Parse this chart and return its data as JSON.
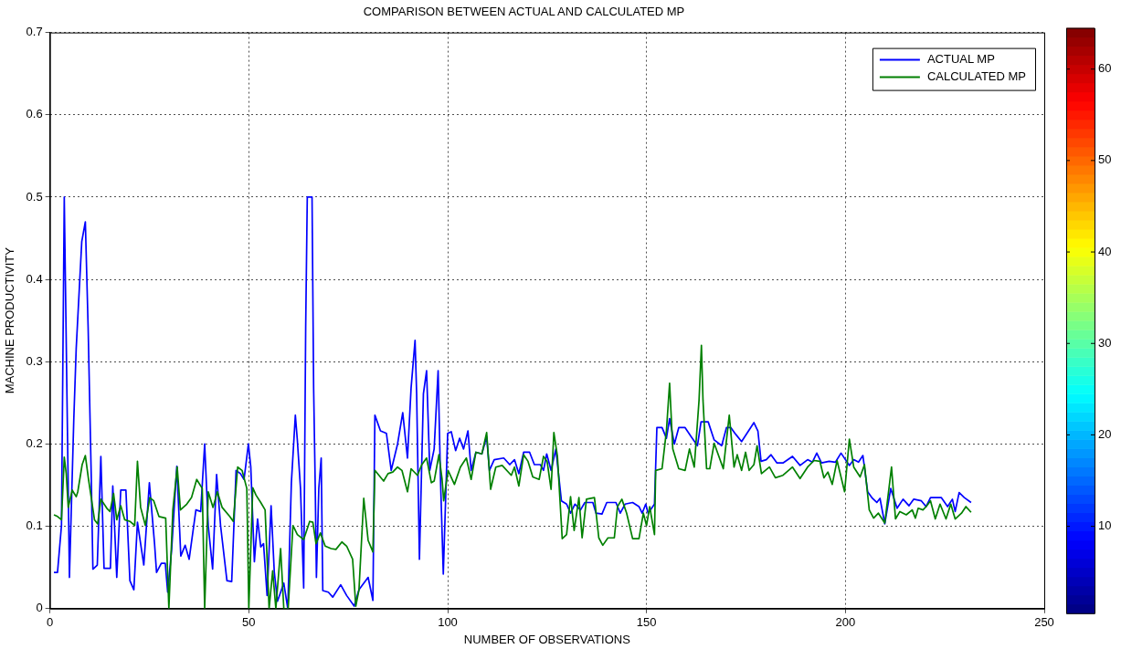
{
  "chart_data": {
    "type": "line",
    "title": "COMPARISON BETWEEN ACTUAL AND CALCULATED MP",
    "xlabel": "NUMBER OF OBSERVATIONS",
    "ylabel": "MACHINE PRODUCTIVITY",
    "xlim": [
      0,
      250
    ],
    "xticks": [
      0,
      50,
      100,
      150,
      200,
      250
    ],
    "ylim": [
      0,
      0.7
    ],
    "yticks": [
      0,
      0.1,
      0.2,
      0.3,
      0.4,
      0.5,
      0.6,
      0.7
    ],
    "grid": true,
    "legend": "top right",
    "marker": "none",
    "line_style": "solid",
    "clim": [
      0.5,
      64.5
    ],
    "cticks": [
      10,
      20,
      30,
      40,
      50,
      60
    ],
    "series": [
      {
        "name": "ACTUAL MP",
        "color": "#0000ff",
        "x": [
          1,
          1.9,
          2.9,
          3.6,
          4.9,
          6,
          6.6,
          8,
          8.9,
          9.6,
          10.4,
          10.8,
          11.9,
          12.8,
          13.6,
          15.2,
          15.8,
          16.8,
          17.8,
          19.1,
          20.1,
          21.1,
          22,
          23.6,
          25,
          26.3,
          26.8,
          28,
          29,
          29.6,
          30.6,
          31.9,
          32.9,
          34,
          35,
          36.7,
          37.9,
          38.9,
          39.8,
          40.9,
          41.9,
          42.9,
          44.5,
          45.7,
          46.8,
          47.9,
          48.8,
          49.9,
          50.5,
          51.4,
          52.2,
          53,
          53.7,
          54.6,
          55.6,
          56.4,
          57.2,
          58.8,
          59.8,
          60.7,
          61.7,
          62.2,
          63,
          63.8,
          64.3,
          64.7,
          65.9,
          66.3,
          66.7,
          67,
          67.6,
          68.2,
          68.6,
          70,
          71.1,
          73.1,
          74.6,
          76.5,
          77.7,
          80,
          81.2,
          81.7,
          83.1,
          84.6,
          85.8,
          87.4,
          88.7,
          89.9,
          90.8,
          91.8,
          92.2,
          92.9,
          93.9,
          94.7,
          95.5,
          96.6,
          97.6,
          98.2,
          98.9,
          100,
          100.9,
          102,
          103,
          104,
          105.1,
          105.9,
          107.1,
          108.6,
          109.8,
          110.5,
          111.7,
          114.1,
          115.6,
          116.8,
          117.9,
          119.1,
          120.6,
          121.8,
          123.3,
          124.1,
          124.9,
          126,
          127.2,
          128.6,
          129.9,
          130.9,
          132,
          133.4,
          134.5,
          136.5,
          137.3,
          138.8,
          140,
          142.3,
          143.4,
          144.6,
          146.5,
          148.1,
          148.9,
          149.8,
          150.4,
          152,
          152.6,
          153.9,
          155,
          155.8,
          157,
          158.1,
          159.7,
          161.2,
          162.8,
          163.7,
          165.5,
          167,
          168.9,
          170.1,
          171.2,
          172.4,
          173.9,
          177,
          178,
          178.8,
          180.1,
          181.3,
          182.8,
          184.3,
          186.7,
          188.6,
          190.5,
          191.7,
          192.8,
          194,
          195.9,
          197.5,
          198.9,
          201,
          202.1,
          203.3,
          204.4,
          205.6,
          206.8,
          207.9,
          208.7,
          209.9,
          211.4,
          213,
          214.5,
          216,
          217.2,
          219.1,
          220.3,
          221.4,
          224.1,
          225.7,
          226.9,
          227.6,
          228.6,
          229.9,
          231.6
        ],
        "values": [
          0.044,
          0.044,
          0.101,
          0.5,
          0.038,
          0.231,
          0.316,
          0.446,
          0.47,
          0.342,
          0.157,
          0.048,
          0.053,
          0.185,
          0.049,
          0.049,
          0.149,
          0.038,
          0.144,
          0.144,
          0.034,
          0.023,
          0.105,
          0.053,
          0.153,
          0.079,
          0.044,
          0.055,
          0.055,
          0.02,
          0.072,
          0.173,
          0.064,
          0.077,
          0.06,
          0.12,
          0.118,
          0.2,
          0.101,
          0.048,
          0.163,
          0.101,
          0.034,
          0.033,
          0.168,
          0.164,
          0.157,
          0.2,
          0.172,
          0.057,
          0.109,
          0.075,
          0.079,
          0.016,
          0.125,
          0.045,
          0.009,
          0.031,
          0,
          0.153,
          0.235,
          0.205,
          0.146,
          0.025,
          0.342,
          0.5,
          0.5,
          0.268,
          0.149,
          0.038,
          0.146,
          0.183,
          0.022,
          0.02,
          0.014,
          0.029,
          0.016,
          0.003,
          0.023,
          0.038,
          0.01,
          0.235,
          0.216,
          0.213,
          0.168,
          0.2,
          0.238,
          0.183,
          0.268,
          0.326,
          0.261,
          0.06,
          0.261,
          0.289,
          0.168,
          0.194,
          0.289,
          0.157,
          0.042,
          0.213,
          0.215,
          0.192,
          0.207,
          0.194,
          0.216,
          0.168,
          0.19,
          0.188,
          0.209,
          0.168,
          0.181,
          0.183,
          0.175,
          0.181,
          0.164,
          0.19,
          0.19,
          0.175,
          0.175,
          0.168,
          0.188,
          0.168,
          0.194,
          0.131,
          0.127,
          0.116,
          0.127,
          0.12,
          0.129,
          0.129,
          0.116,
          0.115,
          0.129,
          0.129,
          0.116,
          0.127,
          0.129,
          0.124,
          0.116,
          0.127,
          0.116,
          0.127,
          0.22,
          0.22,
          0.207,
          0.231,
          0.2,
          0.22,
          0.22,
          0.209,
          0.198,
          0.227,
          0.227,
          0.205,
          0.198,
          0.22,
          0.22,
          0.212,
          0.203,
          0.226,
          0.216,
          0.179,
          0.181,
          0.187,
          0.177,
          0.177,
          0.185,
          0.174,
          0.181,
          0.178,
          0.189,
          0.177,
          0.179,
          0.178,
          0.189,
          0.174,
          0.181,
          0.178,
          0.186,
          0.142,
          0.134,
          0.129,
          0.134,
          0.103,
          0.146,
          0.122,
          0.133,
          0.125,
          0.133,
          0.131,
          0.124,
          0.135,
          0.135,
          0.124,
          0.133,
          0.118,
          0.141,
          0.135,
          0.129
        ]
      },
      {
        "name": "CALCULATED MP",
        "color": "#008000",
        "x": [
          1,
          1.9,
          2.9,
          3.6,
          4.1,
          4.6,
          5.6,
          6.6,
          7,
          8.1,
          8.9,
          9.7,
          11.2,
          12,
          12.8,
          14.3,
          15.1,
          16,
          16.8,
          17.8,
          18.8,
          20.1,
          21.3,
          22,
          22.8,
          24,
          25.1,
          26.1,
          27.4,
          29.1,
          29.9,
          30.9,
          32,
          32.8,
          34.4,
          35.6,
          36.9,
          38.3,
          38.9,
          39.8,
          41,
          42.1,
          43.3,
          45.2,
          46.1,
          47.2,
          48.3,
          49.5,
          50,
          51,
          51.8,
          53,
          54.1,
          55.1,
          56,
          56.8,
          58,
          58.8,
          59.9,
          61.1,
          62.2,
          63.8,
          65.3,
          66.1,
          66.9,
          68,
          69.2,
          70.7,
          71.9,
          73.4,
          74.6,
          76.1,
          76.9,
          77.7,
          78.9,
          80,
          81.2,
          81.7,
          83.9,
          85,
          86.2,
          87.4,
          88.5,
          89.9,
          90.8,
          92.4,
          93.5,
          94.7,
          95.9,
          96.6,
          97.8,
          98.6,
          99,
          100.1,
          101.7,
          103.2,
          104.7,
          105.9,
          107.1,
          108.6,
          109.8,
          110.8,
          112.1,
          113.7,
          116,
          116.8,
          117.9,
          119.1,
          120.2,
          121.4,
          123,
          124.1,
          125,
          126,
          126.7,
          127.6,
          128.8,
          129.9,
          130.9,
          131.8,
          133,
          133.8,
          134.9,
          136.9,
          138,
          139,
          140.3,
          141.9,
          142.7,
          143.8,
          145,
          146.5,
          148.1,
          149.2,
          150,
          150.8,
          152,
          152.3,
          153.9,
          155,
          155.8,
          156.6,
          158.1,
          159.7,
          160.8,
          162,
          163.2,
          163.8,
          164.2,
          165.1,
          165.9,
          167,
          169.3,
          170.8,
          172,
          172.8,
          173.9,
          174.9,
          175.8,
          177,
          177.8,
          178.9,
          180.9,
          182.4,
          184.3,
          186.7,
          188.6,
          190.5,
          192.1,
          193.6,
          194.6,
          195.6,
          196.7,
          197.9,
          199.8,
          201,
          202.1,
          203.7,
          204.8,
          206,
          207.1,
          208.3,
          209.9,
          211.6,
          212.6,
          213.7,
          215.3,
          216.8,
          217.6,
          218.3,
          219.5,
          220.3,
          221.4,
          222.6,
          223.8,
          225.3,
          226.5,
          227.6,
          229.2,
          230.3,
          231.6
        ],
        "values": [
          0.114,
          0.112,
          0.108,
          0.184,
          0.164,
          0.123,
          0.144,
          0.136,
          0.142,
          0.175,
          0.186,
          0.157,
          0.108,
          0.103,
          0.133,
          0.122,
          0.118,
          0.14,
          0.108,
          0.125,
          0.108,
          0.106,
          0.101,
          0.179,
          0.123,
          0.101,
          0.135,
          0.131,
          0.112,
          0.11,
          0,
          0.12,
          0.172,
          0.12,
          0.127,
          0.135,
          0.157,
          0.146,
          0,
          0.142,
          0.123,
          0.142,
          0.123,
          0.112,
          0.106,
          0.172,
          0.168,
          0.146,
          0,
          0.147,
          0.138,
          0.129,
          0.12,
          0,
          0.046,
          0,
          0.073,
          0,
          0,
          0.101,
          0.09,
          0.084,
          0.106,
          0.105,
          0.079,
          0.092,
          0.076,
          0.073,
          0.072,
          0.081,
          0.076,
          0.06,
          0.003,
          0.023,
          0.134,
          0.083,
          0.069,
          0.168,
          0.155,
          0.164,
          0.166,
          0.172,
          0.168,
          0.142,
          0.17,
          0.162,
          0.175,
          0.183,
          0.153,
          0.155,
          0.187,
          0.157,
          0.131,
          0.168,
          0.151,
          0.172,
          0.183,
          0.157,
          0.19,
          0.188,
          0.214,
          0.145,
          0.172,
          0.174,
          0.162,
          0.172,
          0.149,
          0.187,
          0.179,
          0.16,
          0.157,
          0.185,
          0.179,
          0.145,
          0.214,
          0.185,
          0.085,
          0.09,
          0.136,
          0.095,
          0.135,
          0.086,
          0.133,
          0.135,
          0.086,
          0.077,
          0.086,
          0.086,
          0.124,
          0.133,
          0.116,
          0.085,
          0.085,
          0.116,
          0.101,
          0.124,
          0.09,
          0.168,
          0.17,
          0.216,
          0.274,
          0.194,
          0.17,
          0.168,
          0.194,
          0.172,
          0.253,
          0.32,
          0.253,
          0.17,
          0.17,
          0.201,
          0.17,
          0.235,
          0.172,
          0.187,
          0.168,
          0.19,
          0.168,
          0.175,
          0.198,
          0.164,
          0.172,
          0.159,
          0.162,
          0.172,
          0.158,
          0.172,
          0.18,
          0.179,
          0.159,
          0.166,
          0.151,
          0.18,
          0.142,
          0.206,
          0.172,
          0.16,
          0.175,
          0.12,
          0.11,
          0.116,
          0.104,
          0.172,
          0.109,
          0.118,
          0.114,
          0.12,
          0.11,
          0.122,
          0.12,
          0.124,
          0.131,
          0.109,
          0.127,
          0.109,
          0.127,
          0.109,
          0.116,
          0.124,
          0.117
        ]
      }
    ]
  }
}
